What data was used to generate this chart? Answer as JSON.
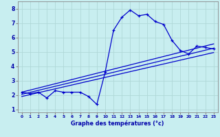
{
  "background_color": "#c8eef0",
  "grid_color": "#b0d8d8",
  "line_color": "#0000cc",
  "xlabel": "Graphe des températures (°c)",
  "xlim": [
    -0.5,
    23.5
  ],
  "ylim": [
    0.8,
    8.5
  ],
  "xticks": [
    0,
    1,
    2,
    3,
    4,
    5,
    6,
    7,
    8,
    9,
    10,
    11,
    12,
    13,
    14,
    15,
    16,
    17,
    18,
    19,
    20,
    21,
    22,
    23
  ],
  "yticks": [
    1,
    2,
    3,
    4,
    5,
    6,
    7,
    8
  ],
  "curve1_x": [
    0,
    1,
    2,
    3,
    4,
    5,
    6,
    7,
    8,
    9,
    10,
    11,
    12,
    13,
    14,
    15,
    16,
    17,
    18,
    19,
    20,
    21,
    22,
    23
  ],
  "curve1_y": [
    2.2,
    2.1,
    2.2,
    1.8,
    2.3,
    2.2,
    2.2,
    2.2,
    1.9,
    1.35,
    3.6,
    6.5,
    7.4,
    7.9,
    7.5,
    7.6,
    7.1,
    6.9,
    5.8,
    5.1,
    4.85,
    5.4,
    5.3,
    5.2
  ],
  "line1_x": [
    0,
    23
  ],
  "line1_y": [
    2.05,
    5.25
  ],
  "line2_x": [
    0,
    23
  ],
  "line2_y": [
    2.2,
    5.55
  ],
  "line3_x": [
    0,
    23
  ],
  "line3_y": [
    1.9,
    4.95
  ]
}
